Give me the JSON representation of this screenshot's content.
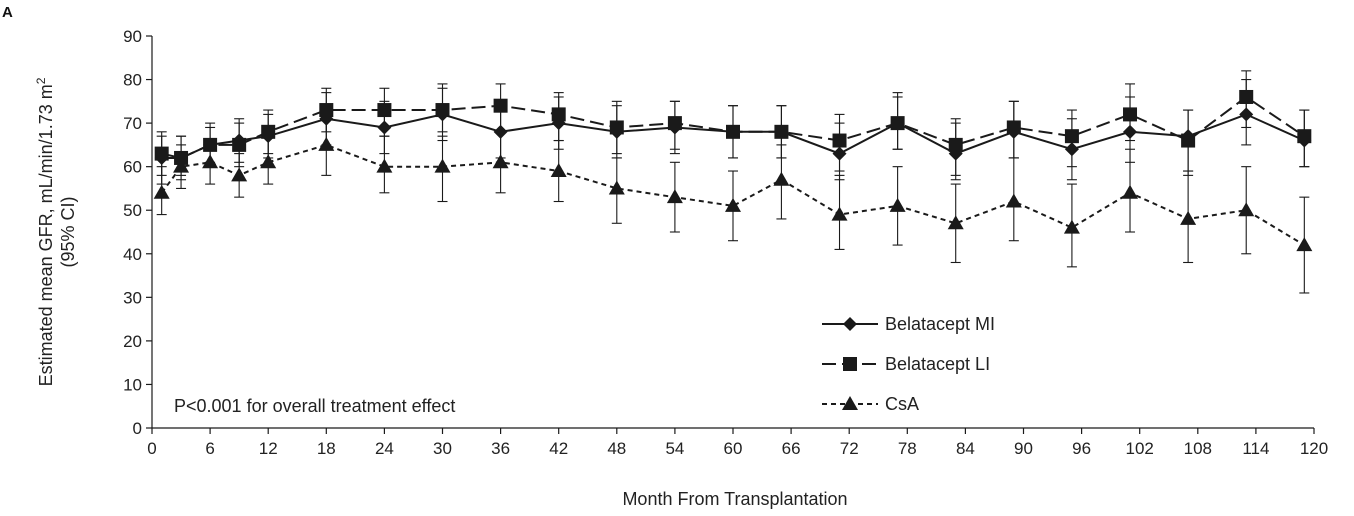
{
  "chart_data": {
    "type": "line",
    "panel_label": "A",
    "xlabel": "Month From Transplantation",
    "ylabel_line1": "Estimated mean GFR, mL/min/1.73 m",
    "ylabel_sup": "2",
    "ylabel_line2": "(95% CI)",
    "xlim": [
      0,
      120
    ],
    "ylim": [
      0,
      90
    ],
    "x_ticks": [
      0,
      6,
      12,
      18,
      24,
      30,
      36,
      42,
      48,
      54,
      60,
      66,
      72,
      78,
      84,
      90,
      96,
      102,
      108,
      114,
      120
    ],
    "y_ticks": [
      0,
      10,
      20,
      30,
      40,
      50,
      60,
      70,
      80,
      90
    ],
    "annotation": "P<0.001 for overall treatment effect",
    "legend_position": "bottom-right",
    "grid": false,
    "series": [
      {
        "name": "Belatacept MI",
        "marker": "diamond",
        "dash": "solid",
        "color": "#1a1a1a",
        "points": [
          {
            "x": 1,
            "y": 62,
            "lo": 56,
            "hi": 68
          },
          {
            "x": 3,
            "y": 62,
            "lo": 57,
            "hi": 67
          },
          {
            "x": 6,
            "y": 65,
            "lo": 60,
            "hi": 69
          },
          {
            "x": 9,
            "y": 66,
            "lo": 61,
            "hi": 71
          },
          {
            "x": 12,
            "y": 67,
            "lo": 62,
            "hi": 72
          },
          {
            "x": 18,
            "y": 71,
            "lo": 65,
            "hi": 77
          },
          {
            "x": 24,
            "y": 69,
            "lo": 63,
            "hi": 75
          },
          {
            "x": 30,
            "y": 72,
            "lo": 66,
            "hi": 78
          },
          {
            "x": 36,
            "y": 68,
            "lo": 62,
            "hi": 74
          },
          {
            "x": 42,
            "y": 70,
            "lo": 64,
            "hi": 76
          },
          {
            "x": 48,
            "y": 68,
            "lo": 62,
            "hi": 74
          },
          {
            "x": 54,
            "y": 69,
            "lo": 63,
            "hi": 75
          },
          {
            "x": 60,
            "y": 68,
            "lo": 62,
            "hi": 74
          },
          {
            "x": 65,
            "y": 68,
            "lo": 62,
            "hi": 74
          },
          {
            "x": 71,
            "y": 63,
            "lo": 57,
            "hi": 70
          },
          {
            "x": 77,
            "y": 70,
            "lo": 64,
            "hi": 76
          },
          {
            "x": 83,
            "y": 63,
            "lo": 57,
            "hi": 70
          },
          {
            "x": 89,
            "y": 68,
            "lo": 62,
            "hi": 75
          },
          {
            "x": 95,
            "y": 64,
            "lo": 57,
            "hi": 71
          },
          {
            "x": 101,
            "y": 68,
            "lo": 61,
            "hi": 76
          },
          {
            "x": 107,
            "y": 67,
            "lo": 59,
            "hi": 73
          },
          {
            "x": 113,
            "y": 72,
            "lo": 65,
            "hi": 80
          },
          {
            "x": 119,
            "y": 66,
            "lo": 60,
            "hi": 73
          }
        ]
      },
      {
        "name": "Belatacept LI",
        "marker": "square",
        "dash": "longdash",
        "color": "#1a1a1a",
        "points": [
          {
            "x": 1,
            "y": 63,
            "lo": 58,
            "hi": 67
          },
          {
            "x": 3,
            "y": 62,
            "lo": 58,
            "hi": 67
          },
          {
            "x": 6,
            "y": 65,
            "lo": 61,
            "hi": 70
          },
          {
            "x": 9,
            "y": 65,
            "lo": 60,
            "hi": 70
          },
          {
            "x": 12,
            "y": 68,
            "lo": 63,
            "hi": 73
          },
          {
            "x": 18,
            "y": 73,
            "lo": 68,
            "hi": 78
          },
          {
            "x": 24,
            "y": 73,
            "lo": 67,
            "hi": 78
          },
          {
            "x": 30,
            "y": 73,
            "lo": 68,
            "hi": 79
          },
          {
            "x": 36,
            "y": 74,
            "lo": 68,
            "hi": 79
          },
          {
            "x": 42,
            "y": 72,
            "lo": 66,
            "hi": 77
          },
          {
            "x": 48,
            "y": 69,
            "lo": 63,
            "hi": 75
          },
          {
            "x": 54,
            "y": 70,
            "lo": 64,
            "hi": 75
          },
          {
            "x": 60,
            "y": 68,
            "lo": 62,
            "hi": 74
          },
          {
            "x": 65,
            "y": 68,
            "lo": 62,
            "hi": 74
          },
          {
            "x": 71,
            "y": 66,
            "lo": 59,
            "hi": 72
          },
          {
            "x": 77,
            "y": 70,
            "lo": 64,
            "hi": 77
          },
          {
            "x": 83,
            "y": 65,
            "lo": 58,
            "hi": 71
          },
          {
            "x": 89,
            "y": 69,
            "lo": 62,
            "hi": 75
          },
          {
            "x": 95,
            "y": 67,
            "lo": 60,
            "hi": 73
          },
          {
            "x": 101,
            "y": 72,
            "lo": 66,
            "hi": 79
          },
          {
            "x": 107,
            "y": 66,
            "lo": 58,
            "hi": 73
          },
          {
            "x": 113,
            "y": 76,
            "lo": 69,
            "hi": 82
          },
          {
            "x": 119,
            "y": 67,
            "lo": 60,
            "hi": 73
          }
        ]
      },
      {
        "name": "CsA",
        "marker": "triangle",
        "dash": "shortdash",
        "color": "#1a1a1a",
        "points": [
          {
            "x": 1,
            "y": 54,
            "lo": 49,
            "hi": 60
          },
          {
            "x": 3,
            "y": 60,
            "lo": 55,
            "hi": 65
          },
          {
            "x": 6,
            "y": 61,
            "lo": 56,
            "hi": 65
          },
          {
            "x": 9,
            "y": 58,
            "lo": 53,
            "hi": 63
          },
          {
            "x": 12,
            "y": 61,
            "lo": 56,
            "hi": 67
          },
          {
            "x": 18,
            "y": 65,
            "lo": 58,
            "hi": 71
          },
          {
            "x": 24,
            "y": 60,
            "lo": 54,
            "hi": 67
          },
          {
            "x": 30,
            "y": 60,
            "lo": 52,
            "hi": 67
          },
          {
            "x": 36,
            "y": 61,
            "lo": 54,
            "hi": 68
          },
          {
            "x": 42,
            "y": 59,
            "lo": 52,
            "hi": 66
          },
          {
            "x": 48,
            "y": 55,
            "lo": 47,
            "hi": 62
          },
          {
            "x": 54,
            "y": 53,
            "lo": 45,
            "hi": 61
          },
          {
            "x": 60,
            "y": 51,
            "lo": 43,
            "hi": 59
          },
          {
            "x": 65,
            "y": 57,
            "lo": 48,
            "hi": 65
          },
          {
            "x": 71,
            "y": 49,
            "lo": 41,
            "hi": 58
          },
          {
            "x": 77,
            "y": 51,
            "lo": 42,
            "hi": 60
          },
          {
            "x": 83,
            "y": 47,
            "lo": 38,
            "hi": 56
          },
          {
            "x": 89,
            "y": 52,
            "lo": 43,
            "hi": 62
          },
          {
            "x": 95,
            "y": 46,
            "lo": 37,
            "hi": 56
          },
          {
            "x": 101,
            "y": 54,
            "lo": 45,
            "hi": 64
          },
          {
            "x": 107,
            "y": 48,
            "lo": 38,
            "hi": 59
          },
          {
            "x": 113,
            "y": 50,
            "lo": 40,
            "hi": 60
          },
          {
            "x": 119,
            "y": 42,
            "lo": 31,
            "hi": 53
          }
        ]
      }
    ]
  }
}
